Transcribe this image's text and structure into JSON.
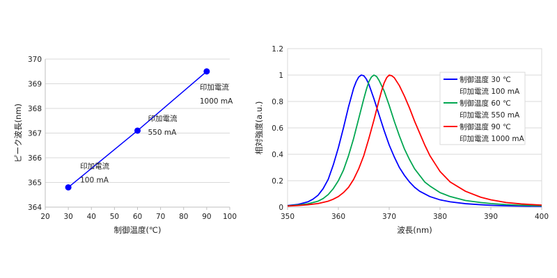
{
  "chart_data": [
    {
      "type": "scatter",
      "xlabel": "制御温度(℃)",
      "ylabel": "ピーク波長(nm)",
      "xlim": [
        20,
        100
      ],
      "ylim": [
        364,
        370
      ],
      "xticks": [
        "20",
        "30",
        "40",
        "50",
        "60",
        "70",
        "80",
        "90",
        "100"
      ],
      "yticks": [
        "364",
        "365",
        "366",
        "367",
        "368",
        "369",
        "370"
      ],
      "grid": "horizontal",
      "line_color": "#0000ff",
      "series": [
        {
          "x": [
            30,
            60,
            90
          ],
          "y": [
            364.8,
            367.1,
            369.5
          ]
        }
      ],
      "annotations": [
        {
          "line1": "印加電流",
          "line2": "100 mA",
          "x": 30,
          "y": 364.8
        },
        {
          "line1": "印加電流",
          "line2": "550 mA",
          "x": 60,
          "y": 367.1
        },
        {
          "line1": "印加電流",
          "line2": "1000 mA",
          "x": 90,
          "y": 369.5
        }
      ]
    },
    {
      "type": "line",
      "xlabel": "波長(nm)",
      "ylabel": "相対強度(a.u.)",
      "xlim": [
        350,
        400
      ],
      "ylim": [
        0,
        1.2
      ],
      "xticks": [
        "350",
        "360",
        "370",
        "380",
        "390",
        "400"
      ],
      "yticks": [
        "0",
        "0.2",
        "0.4",
        "0.6",
        "0.8",
        "1",
        "1.2"
      ],
      "grid": "horizontal",
      "legend_position": "right",
      "series": [
        {
          "name": "制御温度 30 ℃",
          "subname": "印加電流 100 mA",
          "color": "#0000ff",
          "x": [
            350,
            352,
            354,
            355,
            356,
            357,
            358,
            359,
            360,
            361,
            362,
            363,
            363.5,
            364,
            364.5,
            365,
            365.5,
            366,
            367,
            368,
            369,
            370,
            371,
            372,
            373,
            374,
            375,
            376,
            378,
            380,
            382,
            385,
            388,
            390,
            393,
            396,
            400
          ],
          "y": [
            0.012,
            0.02,
            0.04,
            0.06,
            0.09,
            0.14,
            0.21,
            0.32,
            0.45,
            0.6,
            0.76,
            0.9,
            0.95,
            0.985,
            1.0,
            0.995,
            0.97,
            0.93,
            0.82,
            0.7,
            0.58,
            0.47,
            0.38,
            0.3,
            0.24,
            0.19,
            0.15,
            0.12,
            0.08,
            0.055,
            0.04,
            0.026,
            0.018,
            0.014,
            0.01,
            0.008,
            0.006
          ]
        },
        {
          "name": "制御温度 60 ℃",
          "subname": "印加電流 550 mA",
          "color": "#00a650",
          "x": [
            350,
            352,
            354,
            356,
            357,
            358,
            359,
            360,
            361,
            362,
            363,
            364,
            365,
            365.5,
            366,
            366.5,
            367,
            367.5,
            368,
            369,
            370,
            371,
            372,
            373,
            374,
            375,
            376,
            377,
            378,
            380,
            382,
            385,
            388,
            390,
            393,
            396,
            400
          ],
          "y": [
            0.01,
            0.016,
            0.025,
            0.045,
            0.065,
            0.095,
            0.14,
            0.2,
            0.28,
            0.39,
            0.52,
            0.67,
            0.82,
            0.89,
            0.95,
            0.985,
            1.0,
            0.99,
            0.96,
            0.88,
            0.77,
            0.65,
            0.54,
            0.44,
            0.36,
            0.29,
            0.24,
            0.19,
            0.16,
            0.11,
            0.08,
            0.05,
            0.035,
            0.027,
            0.019,
            0.014,
            0.01
          ]
        },
        {
          "name": "制御温度 90 ℃",
          "subname": "印加電流 1000 mA",
          "color": "#ff0000",
          "x": [
            350,
            352,
            354,
            356,
            358,
            359,
            360,
            361,
            362,
            363,
            364,
            365,
            366,
            367,
            368,
            368.5,
            369,
            369.5,
            370,
            370.5,
            371,
            372,
            373,
            374,
            375,
            376,
            377,
            378,
            379,
            380,
            382,
            385,
            388,
            390,
            393,
            396,
            400
          ],
          "y": [
            0.008,
            0.012,
            0.018,
            0.027,
            0.045,
            0.06,
            0.08,
            0.11,
            0.15,
            0.21,
            0.29,
            0.39,
            0.52,
            0.66,
            0.81,
            0.88,
            0.94,
            0.98,
            1.0,
            0.995,
            0.98,
            0.92,
            0.84,
            0.75,
            0.65,
            0.56,
            0.47,
            0.39,
            0.33,
            0.27,
            0.19,
            0.12,
            0.075,
            0.055,
            0.035,
            0.024,
            0.015
          ]
        }
      ]
    }
  ]
}
